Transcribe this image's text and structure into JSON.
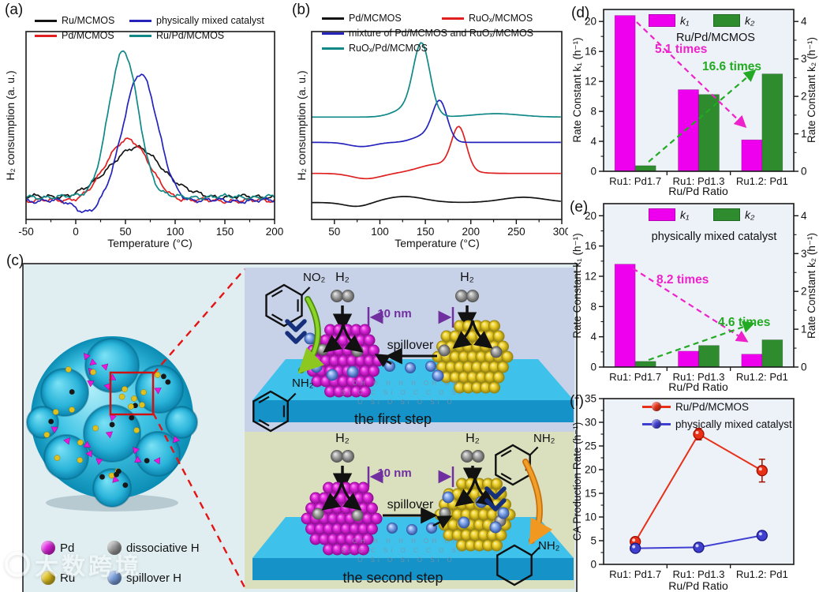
{
  "figure": {
    "panel_labels": [
      "(a)",
      "(b)",
      "(c)",
      "(d)",
      "(e)",
      "(f)"
    ]
  },
  "chart_data": [
    {
      "id": "a",
      "type": "line",
      "xlabel": "Temperature (°C)",
      "ylabel": "H₂ consumption (a. u.)",
      "xlim": [
        -50,
        200
      ],
      "xticks": [
        -50,
        0,
        50,
        100,
        150,
        200
      ],
      "series": [
        {
          "name": "Ru/MCMOS",
          "color": "#141414",
          "baseline": 0.12,
          "noise": 0.016,
          "peaks": [
            {
              "t": 60,
              "h": 0.26,
              "s": 27
            }
          ]
        },
        {
          "name": "Pd/MCMOS",
          "color": "#e02020",
          "baseline": 0.1,
          "noise": 0.016,
          "peaks": [
            {
              "t": 52,
              "h": 0.33,
              "s": 21
            }
          ]
        },
        {
          "name": "physically mixed catalyst",
          "color": "#2424bc",
          "baseline": 0.1,
          "noise": 0.016,
          "peaks": [
            {
              "t": 65,
              "h": 0.68,
              "s": 17
            },
            {
              "t": 12,
              "h": -0.06,
              "s": 12
            }
          ]
        },
        {
          "name": "Ru/Pd/MCMOS",
          "color": "#108888",
          "baseline": 0.12,
          "noise": 0.016,
          "peaks": [
            {
              "t": 48,
              "h": 0.77,
              "s": 15
            }
          ]
        }
      ]
    },
    {
      "id": "b",
      "type": "line",
      "xlabel": "Temperature (°C)",
      "ylabel": "H₂ consumption (a. u.)",
      "xlim": [
        25,
        300
      ],
      "xticks": [
        50,
        100,
        150,
        200,
        250,
        300
      ],
      "series": [
        {
          "name": "Pd/MCMOS",
          "color": "#141414",
          "baseline": 0.09,
          "peaks": [
            {
              "t": 75,
              "h": -0.022,
              "s": 14
            },
            {
              "t": 127,
              "h": 0.032,
              "s": 22
            },
            {
              "t": 258,
              "h": 0.028,
              "s": 24
            }
          ]
        },
        {
          "name": "RuOₓ/MCMOS",
          "color": "#e02020",
          "baseline": 0.245,
          "peaks": [
            {
              "t": 85,
              "h": -0.028,
              "s": 16
            },
            {
              "t": 165,
              "h": 0.05,
              "s": 22
            },
            {
              "t": 187,
              "h": 0.22,
              "s": 8
            }
          ]
        },
        {
          "name": "mixture of Pd/MCMOS and RuOₓ/MCMOS",
          "color": "#2424bc",
          "baseline": 0.41,
          "peaks": [
            {
              "t": 80,
              "h": -0.022,
              "s": 14
            },
            {
              "t": 152,
              "h": 0.04,
              "s": 14
            },
            {
              "t": 166,
              "h": 0.2,
              "s": 8
            }
          ]
        },
        {
          "name": "RuOₓ/Pd/MCMOS",
          "color": "#108888",
          "baseline": 0.545,
          "peaks": [
            {
              "t": 146,
              "h": 0.36,
              "s": 9
            },
            {
              "t": 133,
              "h": 0.05,
              "s": 16
            },
            {
              "t": 228,
              "h": 0.018,
              "s": 26
            }
          ]
        }
      ]
    },
    {
      "id": "d",
      "type": "bar",
      "title": "Ru/Pd/MCMOS",
      "categories": [
        "Ru1: Pd1.7",
        "Ru1: Pd1.3",
        "Ru1.2: Pd1"
      ],
      "xlabel": "Ru/Pd Ratio",
      "left_axis": {
        "label": "Rate Constant k₁ (h⁻¹)",
        "ticks": [
          0,
          4,
          8,
          12,
          16,
          20
        ],
        "max": 21.6
      },
      "right_axis": {
        "label": "Rate Constant k₂ (h⁻¹)",
        "ticks": [
          0,
          1,
          2,
          3,
          4
        ],
        "max": 4.32
      },
      "series": [
        {
          "name": "k₁",
          "color": "#ee00ee",
          "axis": "left",
          "values": [
            20.8,
            10.9,
            4.2
          ]
        },
        {
          "name": "k₂",
          "color": "#2e8b2e",
          "axis": "right",
          "values": [
            0.15,
            2.05,
            2.6
          ]
        }
      ],
      "annotations": [
        {
          "text": "5.1 times",
          "color": "#ee22cc"
        },
        {
          "text": "16.6 times",
          "color": "#22aa22"
        }
      ]
    },
    {
      "id": "e",
      "type": "bar",
      "title": "physically mixed catalyst",
      "categories": [
        "Ru1: Pd1.7",
        "Ru1: Pd1.3",
        "Ru1.2: Pd1"
      ],
      "xlabel": "Ru/Pd Ratio",
      "left_axis": {
        "label": "Rate Constant k₁ (h⁻¹)",
        "ticks": [
          0,
          4,
          8,
          12,
          16,
          20
        ],
        "max": 21.6
      },
      "right_axis": {
        "label": "Rate Constant k₂ (h⁻¹)",
        "ticks": [
          0,
          1,
          2,
          3,
          4
        ],
        "max": 4.32
      },
      "series": [
        {
          "name": "k₁",
          "color": "#ee00ee",
          "axis": "left",
          "values": [
            13.6,
            2.1,
            1.7
          ]
        },
        {
          "name": "k₂",
          "color": "#2e8b2e",
          "axis": "right",
          "values": [
            0.15,
            0.57,
            0.72
          ]
        }
      ],
      "annotations": [
        {
          "text": "8.2 times",
          "color": "#ee22cc"
        },
        {
          "text": "4.6 times",
          "color": "#22aa22"
        }
      ]
    },
    {
      "id": "f",
      "type": "scatter",
      "categories": [
        "Ru1: Pd1.7",
        "Ru1: Pd1.3",
        "Ru1.2: Pd1"
      ],
      "xlabel": "Ru/Pd Ratio",
      "ylabel": "CA Production Rate (h⁻¹)",
      "yticks": [
        0,
        5,
        10,
        15,
        20,
        25,
        30,
        35
      ],
      "ymax": 35,
      "series": [
        {
          "name": "Ru/Pd/MCMOS",
          "color": "#e83018",
          "edge": "#a01000",
          "values": [
            4.8,
            27.5,
            19.8
          ],
          "errors": [
            0.6,
            1.2,
            2.4
          ]
        },
        {
          "name": "physically mixed catalyst",
          "color": "#4040d0",
          "edge": "#181880",
          "values": [
            3.4,
            3.6,
            6.1
          ],
          "errors": [
            0.3,
            0.3,
            0.5
          ]
        }
      ]
    }
  ],
  "scheme": {
    "legend": [
      {
        "label": "Pd",
        "color": "#e020e0"
      },
      {
        "label": "dissociative H",
        "color": "#9a9a9a"
      },
      {
        "label": "Ru",
        "color": "#e0c020"
      },
      {
        "label": "spillover H",
        "color": "#7aa0e0"
      }
    ],
    "h2_label": "H₂",
    "distance_label": "10 nm",
    "spillover_label": "spillover",
    "step1_caption": "the first step",
    "step2_caption": "the second step",
    "nitro_label": "NO₂",
    "amine_label": "NH₂",
    "surface_rows": [
      "OH H H H H OH OH",
      "Si C C Si O C C O Si",
      "O Si O Si O Si O"
    ]
  },
  "watermark": {
    "text": "大数跨境"
  }
}
